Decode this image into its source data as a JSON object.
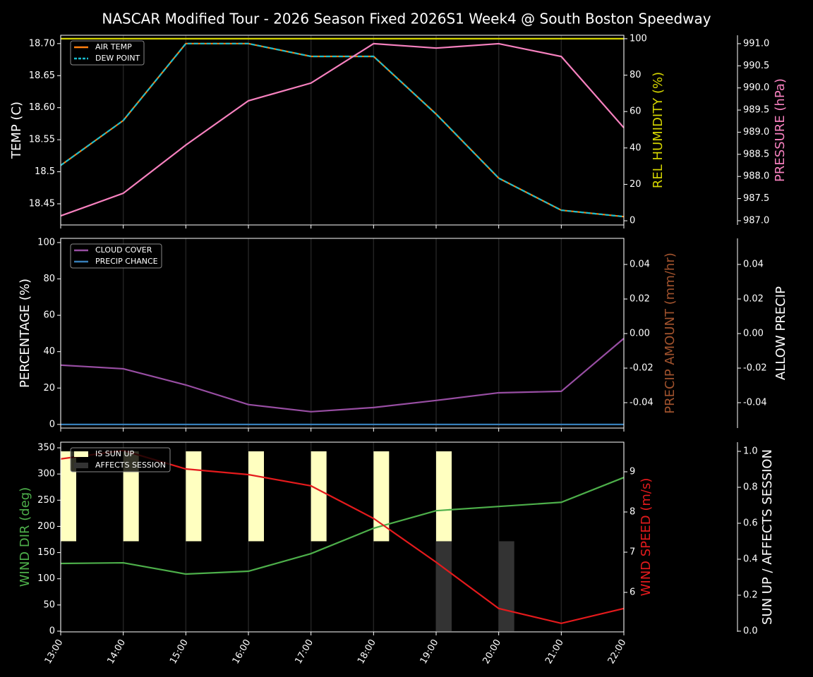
{
  "chart_data": [
    {
      "type": "line",
      "title": "NASCAR Modified Tour - 2026 Season Fixed 2026S1 Week4 @ South Boston Speedway",
      "ylabel": "TEMP (C)",
      "ylabel_color": "#ffffff",
      "y2label": "REL HUMIDITY (%)",
      "y2label_color": "#d4d400",
      "y3label": "PRESSURE (hPa)",
      "y3label_color": "#f781bf",
      "ylim": [
        18.417,
        18.713
      ],
      "yticks": [
        {
          "value": 18.45,
          "label": "18.45"
        },
        18.5,
        {
          "value": 18.55,
          "label": "18.55"
        },
        {
          "value": 18.6,
          "label": "18.60"
        },
        {
          "value": 18.65,
          "label": "18.65"
        },
        {
          "value": 18.7,
          "label": "18.70"
        }
      ],
      "y2lim": [
        -2.3,
        101.9
      ],
      "y2ticks": [
        0,
        20,
        40,
        60,
        80,
        100
      ],
      "y3lim": [
        986.904,
        991.19
      ],
      "y3ticks": [
        {
          "value": 987,
          "label": "987.0"
        },
        987.5,
        {
          "value": 988,
          "label": "988.0"
        },
        988.5,
        {
          "value": 989,
          "label": "989.0"
        },
        989.5,
        {
          "value": 990,
          "label": "990.0"
        },
        990.5,
        {
          "value": 991,
          "label": "991.0"
        }
      ],
      "legend": "upper left",
      "series": [
        {
          "name": "AIR TEMP",
          "type": "line",
          "axis": "y",
          "color": "#ff7f0e",
          "values": [
            18.51,
            18.58,
            18.7,
            18.7,
            18.68,
            18.68,
            18.59,
            18.49,
            18.44,
            18.43
          ]
        },
        {
          "name": "DEW POINT",
          "type": "line",
          "axis": "y",
          "color": "#17becf",
          "dash": true,
          "values": [
            18.51,
            18.58,
            18.7,
            18.7,
            18.68,
            18.68,
            18.59,
            18.49,
            18.44,
            18.43
          ]
        },
        {
          "type": "line",
          "axis": "y2",
          "color": "#d4d400",
          "values": [
            100,
            100,
            100,
            100,
            100,
            100,
            100,
            100,
            100,
            100
          ]
        },
        {
          "type": "line",
          "axis": "y3",
          "color": "#f781bf",
          "values": [
            987.11,
            987.62,
            988.71,
            989.71,
            990.11,
            991.0,
            990.9,
            991.0,
            990.71,
            989.1
          ]
        }
      ]
    },
    {
      "type": "line",
      "ylabel": "PERCENTAGE (%)",
      "ylabel_color": "#ffffff",
      "y2label": "PRECIP AMOUNT (mm/hr)",
      "y2label_color": "#a0522d",
      "y3label": "ALLOW PRECIP",
      "y3label_color": "#ffffff",
      "ylim": [
        -2,
        102.3
      ],
      "yticks": [
        0,
        20,
        40,
        60,
        80,
        100
      ],
      "y2lim": [
        -0.0547,
        0.0551
      ],
      "y2ticks": [
        -0.04,
        -0.02,
        {
          "value": 0,
          "label": "0.00"
        },
        0.02,
        0.04
      ],
      "y3lim": [
        -0.0547,
        0.0551
      ],
      "y3ticks": [
        -0.04,
        -0.02,
        {
          "value": 0,
          "label": "0.00"
        },
        0.02,
        0.04
      ],
      "legend": "upper left",
      "series": [
        {
          "name": "CLOUD COVER",
          "type": "line",
          "axis": "y",
          "color": "#984ea3",
          "values": [
            32.6,
            30.6,
            21.7,
            10.9,
            7.0,
            9.3,
            13.2,
            17.4,
            18.2,
            47.3
          ]
        },
        {
          "name": "PRECIP CHANCE",
          "type": "line",
          "axis": "y",
          "color": "#377eb8",
          "values": [
            0,
            0,
            0,
            0,
            0,
            0,
            0,
            0,
            0,
            0
          ]
        }
      ]
    },
    {
      "type": "combo",
      "categories": [
        "13:00",
        "14:00",
        "15:00",
        "16:00",
        "17:00",
        "18:00",
        "19:00",
        "20:00",
        "21:00",
        "22:00"
      ],
      "ylabel": "WIND DIR (deg)",
      "ylabel_color": "#4daf4a",
      "y2label": "WIND SPEED (m/s)",
      "y2label_color": "#e41a1c",
      "y3label": "SUN UP / AFFECTS SESSION",
      "y3label_color": "#ffffff",
      "ylim": [
        -1.35,
        360.8
      ],
      "yticks": [
        0,
        50,
        100,
        150,
        200,
        250,
        300,
        350
      ],
      "y2lim": [
        5.018,
        9.737
      ],
      "y2ticks": [
        6,
        7,
        8,
        9
      ],
      "y3lim": [
        -0.004,
        1.051
      ],
      "y3ticks": [
        {
          "value": 0,
          "label": "0.0"
        },
        0.2,
        0.4,
        0.6,
        0.8,
        {
          "value": 1,
          "label": "1.0"
        }
      ],
      "legend": "upper left",
      "series": [
        {
          "name": "IS SUN UP",
          "type": "bar",
          "axis": "y3",
          "base": 0.5,
          "color": "#ffffc0",
          "values": [
            1,
            1,
            1,
            1,
            1,
            1,
            1,
            0,
            0,
            0
          ]
        },
        {
          "name": "AFFECTS SESSION",
          "type": "bar",
          "axis": "y3",
          "color": "#333333",
          "values": [
            0,
            0,
            0,
            0,
            0,
            0,
            0.5,
            0.5,
            0,
            0
          ]
        },
        {
          "type": "line",
          "axis": "y",
          "color": "#4daf4a",
          "values": [
            129.2,
            130.5,
            109,
            114.4,
            148,
            196.5,
            230,
            238,
            246,
            293.4
          ]
        },
        {
          "type": "line",
          "axis": "y2",
          "color": "#e41a1c",
          "values": [
            9.32,
            9.53,
            9.07,
            8.93,
            8.65,
            7.84,
            6.75,
            5.6,
            5.23,
            5.6
          ]
        }
      ]
    }
  ]
}
